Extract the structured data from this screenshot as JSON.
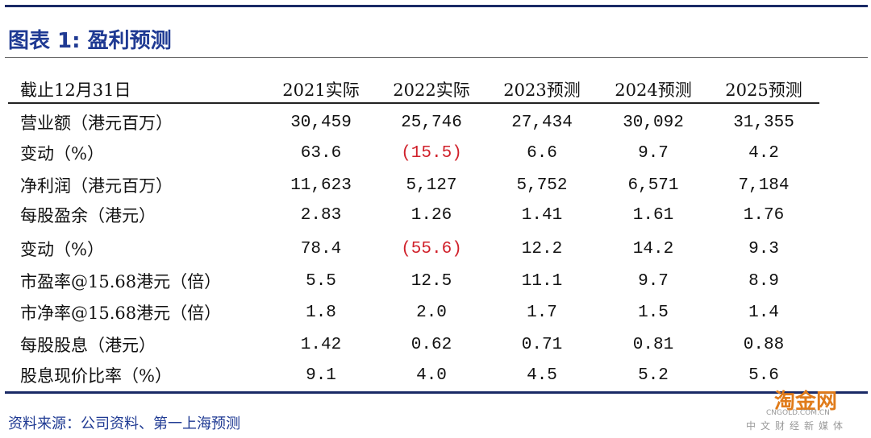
{
  "header": {
    "title": "图表 1: 盈利预测"
  },
  "table": {
    "columns": [
      "截止12月31日",
      "2021实际",
      "2022实际",
      "2023预测",
      "2024预测",
      "2025预测"
    ],
    "rows": [
      [
        "营业额（港元百万）",
        "30,459",
        "25,746",
        "27,434",
        "30,092",
        "31,355"
      ],
      [
        "变动（%）",
        "63.6",
        "(15.5)",
        "6.6",
        "9.7",
        "4.2"
      ],
      [
        "净利润（港元百万）",
        "11,623",
        "5,127",
        "5,752",
        "6,571",
        "7,184"
      ],
      [
        "每股盈余（港元）",
        "2.83",
        "1.26",
        "1.41",
        "1.61",
        "1.76"
      ],
      [
        "变动（%）",
        "78.4",
        "(55.6)",
        "12.2",
        "14.2",
        "9.3"
      ],
      [
        "市盈率@15.68港元（倍）",
        "5.5",
        "12.5",
        "11.1",
        "9.7",
        "8.9"
      ],
      [
        "市净率@15.68港元（倍）",
        "1.8",
        "2.0",
        "1.7",
        "1.5",
        "1.4"
      ],
      [
        "每股股息（港元）",
        "1.42",
        "0.62",
        "0.71",
        "0.81",
        "0.88"
      ],
      [
        "股息现价比率（%）",
        "9.1",
        "4.0",
        "4.5",
        "5.2",
        "5.6"
      ]
    ]
  },
  "source": "资料来源：公司资料、第一上海预测",
  "watermark": {
    "brand": "淘金网",
    "domain": "CNGOLD.COM.CN",
    "tagline": "中文财经新媒体"
  }
}
